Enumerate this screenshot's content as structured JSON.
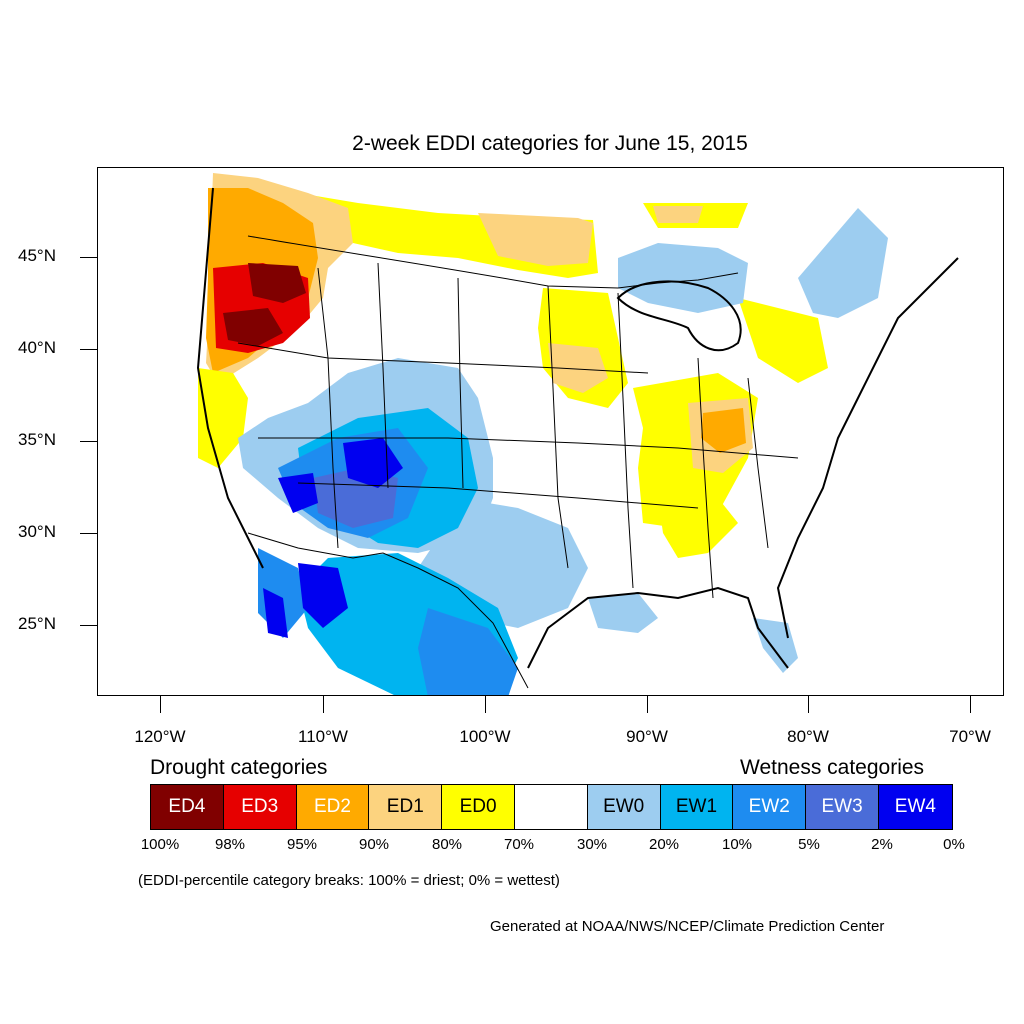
{
  "title": "2-week EDDI categories for June 15, 2015",
  "latitude_labels": [
    "45°N",
    "40°N",
    "35°N",
    "30°N",
    "25°N"
  ],
  "longitude_labels": [
    "120°W",
    "110°W",
    "100°W",
    "90°W",
    "80°W",
    "70°W"
  ],
  "legend": {
    "drought_heading": "Drought categories",
    "wetness_heading": "Wetness categories",
    "categories": [
      {
        "label": "ED4",
        "color": "#800000",
        "text_color": "#ffffff"
      },
      {
        "label": "ED3",
        "color": "#e60000",
        "text_color": "#ffffff"
      },
      {
        "label": "ED2",
        "color": "#ffaa00",
        "text_color": "#ffffff"
      },
      {
        "label": "ED1",
        "color": "#fcd37f",
        "text_color": "#000000"
      },
      {
        "label": "ED0",
        "color": "#ffff00",
        "text_color": "#000000"
      },
      {
        "label": "",
        "color": "#ffffff",
        "text_color": "#000000"
      },
      {
        "label": "EW0",
        "color": "#9dcdf0",
        "text_color": "#000000"
      },
      {
        "label": "EW1",
        "color": "#00b4f0",
        "text_color": "#000000"
      },
      {
        "label": "EW2",
        "color": "#1e8cf0",
        "text_color": "#ffffff"
      },
      {
        "label": "EW3",
        "color": "#4a6cd8",
        "text_color": "#ffffff"
      },
      {
        "label": "EW4",
        "color": "#0000f0",
        "text_color": "#ffffff"
      }
    ],
    "breaks": [
      "100%",
      "98%",
      "95%",
      "90%",
      "80%",
      "70%",
      "30%",
      "20%",
      "10%",
      "5%",
      "2%",
      "0%"
    ]
  },
  "note": "(EDDI-percentile category breaks: 100% = driest; 0% = wettest)",
  "credit": "Generated at NOAA/NWS/NCEP/Climate Prediction Center"
}
